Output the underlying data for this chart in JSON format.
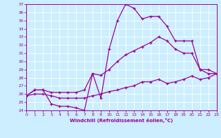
{
  "xlabel": "Windchill (Refroidissement éolien,°C)",
  "bg_color": "#cceeff",
  "line_color": "#990099",
  "grid_color": "#ffffff",
  "xlim": [
    0,
    23
  ],
  "ylim": [
    24,
    37
  ],
  "yticks": [
    24,
    25,
    26,
    27,
    28,
    29,
    30,
    31,
    32,
    33,
    34,
    35,
    36,
    37
  ],
  "xticks": [
    0,
    1,
    2,
    3,
    4,
    5,
    6,
    7,
    8,
    9,
    10,
    11,
    12,
    13,
    14,
    15,
    16,
    17,
    18,
    19,
    20,
    21,
    22,
    23
  ],
  "line1_x": [
    0,
    1,
    2,
    3,
    4,
    5,
    6,
    7,
    8,
    9,
    10,
    11,
    12,
    13,
    14,
    15,
    16,
    17,
    18,
    19,
    20,
    21,
    22,
    23
  ],
  "line1_y": [
    25.8,
    26.5,
    26.5,
    24.8,
    24.5,
    24.5,
    24.3,
    24.0,
    28.5,
    25.5,
    31.5,
    35.0,
    37.0,
    36.5,
    35.2,
    35.5,
    35.5,
    34.3,
    32.5,
    32.5,
    32.5,
    29.0,
    28.5,
    28.5
  ],
  "line2_x": [
    0,
    1,
    2,
    3,
    4,
    5,
    6,
    7,
    8,
    9,
    10,
    11,
    12,
    13,
    14,
    15,
    16,
    17,
    18,
    19,
    20,
    21,
    22,
    23
  ],
  "line2_y": [
    25.8,
    26.5,
    26.5,
    26.2,
    26.2,
    26.2,
    26.2,
    26.5,
    28.5,
    28.3,
    29.0,
    30.0,
    30.8,
    31.3,
    31.8,
    32.3,
    33.0,
    32.5,
    31.5,
    31.0,
    31.0,
    29.0,
    29.0,
    28.5
  ],
  "line3_x": [
    0,
    1,
    2,
    3,
    4,
    5,
    6,
    7,
    8,
    9,
    10,
    11,
    12,
    13,
    14,
    15,
    16,
    17,
    18,
    19,
    20,
    21,
    22,
    23
  ],
  "line3_y": [
    25.8,
    26.0,
    26.0,
    25.8,
    25.5,
    25.5,
    25.5,
    25.5,
    25.8,
    26.0,
    26.3,
    26.5,
    26.8,
    27.0,
    27.5,
    27.5,
    27.8,
    27.3,
    27.5,
    27.8,
    28.2,
    27.8,
    28.0,
    28.5
  ]
}
